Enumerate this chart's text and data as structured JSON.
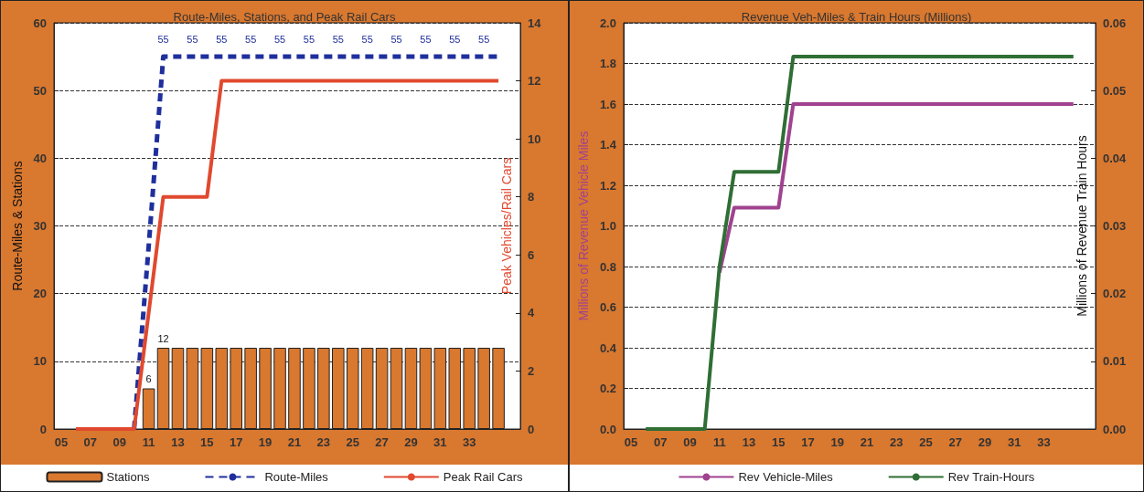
{
  "chart_data": [
    {
      "type": "bar",
      "title": "Route-Miles, Stations, and Peak Rail Cars",
      "ylabel": "Route-Miles & Stations",
      "y2label": "Peak Vehicles/Rail Cars",
      "categories": [
        "05",
        null,
        "07",
        null,
        "09",
        null,
        "11",
        null,
        "13",
        null,
        "15",
        null,
        "17",
        null,
        "19",
        null,
        "21",
        null,
        "23",
        null,
        "25",
        null,
        "27",
        null,
        "29",
        null,
        "31",
        null,
        "33",
        null,
        null,
        null
      ],
      "series": [
        {
          "name": "Stations",
          "color": "#d9782f",
          "values": [
            null,
            null,
            null,
            null,
            null,
            null,
            6,
            12,
            12,
            12,
            12,
            12,
            12,
            12,
            12,
            12,
            12,
            12,
            12,
            12,
            12,
            12,
            12,
            12,
            12,
            12,
            12,
            12,
            12,
            12,
            12,
            null
          ],
          "value_labels": [
            null,
            null,
            null,
            null,
            null,
            null,
            "6",
            "12",
            null,
            null,
            null,
            null,
            null,
            null,
            null,
            null,
            null,
            null,
            null,
            null,
            null,
            null,
            null,
            null,
            null,
            null,
            null,
            null,
            null,
            null,
            null,
            null
          ]
        },
        {
          "name": "Route-Miles",
          "type": "line",
          "line_style": "dashed",
          "color": "#1f2f9c",
          "values": [
            null,
            null,
            null,
            null,
            null,
            0,
            27,
            55,
            55,
            55,
            55,
            55,
            55,
            55,
            55,
            55,
            55,
            55,
            55,
            55,
            55,
            55,
            55,
            55,
            55,
            55,
            55,
            55,
            55,
            55,
            55,
            null
          ],
          "value_labels": [
            null,
            null,
            null,
            null,
            null,
            null,
            null,
            "55",
            null,
            "55",
            null,
            "55",
            null,
            "55",
            null,
            "55",
            null,
            "55",
            null,
            "55",
            null,
            "55",
            null,
            "55",
            null,
            "55",
            null,
            "55",
            null,
            "55",
            null,
            null
          ]
        },
        {
          "name": "Peak Rail Cars",
          "type": "line",
          "axis": "y2",
          "color": "#e0492f",
          "values": [
            null,
            0,
            0,
            0,
            0,
            0,
            4,
            8,
            8,
            8,
            8,
            12,
            12,
            12,
            12,
            12,
            12,
            12,
            12,
            12,
            12,
            12,
            12,
            12,
            12,
            12,
            12,
            12,
            12,
            12,
            12,
            null
          ]
        }
      ],
      "ylim": [
        0,
        60
      ],
      "yticks": [
        0,
        10,
        20,
        30,
        40,
        50,
        60
      ],
      "y2lim": [
        0,
        14
      ],
      "y2ticks": [
        0,
        2,
        4,
        6,
        8,
        10,
        12,
        14
      ],
      "grid": "y",
      "legend": "bottom",
      "marker": "none"
    },
    {
      "type": "line",
      "title": "Revenue Veh-Miles & Train Hours (Millions)",
      "ylabel": "Millions of Revenue Vehicle Miles",
      "y2label": "Millions of Revenue Train Hours",
      "categories": [
        "05",
        null,
        "07",
        null,
        "09",
        null,
        "11",
        null,
        "13",
        null,
        "15",
        null,
        "17",
        null,
        "19",
        null,
        "21",
        null,
        "23",
        null,
        "25",
        null,
        "27",
        null,
        "29",
        null,
        "31",
        null,
        "33",
        null,
        null,
        null
      ],
      "series": [
        {
          "name": "Rev Vehicle-Miles",
          "color": "#a0428f",
          "values": [
            null,
            null,
            null,
            null,
            null,
            null,
            0.77,
            1.09,
            1.09,
            1.09,
            1.09,
            1.6,
            1.6,
            1.6,
            1.6,
            1.6,
            1.6,
            1.6,
            1.6,
            1.6,
            1.6,
            1.6,
            1.6,
            1.6,
            1.6,
            1.6,
            1.6,
            1.6,
            1.6,
            1.6,
            1.6,
            null
          ]
        },
        {
          "name": "Rev Train-Hours",
          "axis": "y2",
          "color": "#2f6e35",
          "values": [
            null,
            0,
            0,
            0,
            0,
            0,
            0.024,
            0.038,
            0.038,
            0.038,
            0.038,
            0.055,
            0.055,
            0.055,
            0.055,
            0.055,
            0.055,
            0.055,
            0.055,
            0.055,
            0.055,
            0.055,
            0.055,
            0.055,
            0.055,
            0.055,
            0.055,
            0.055,
            0.055,
            0.055,
            0.055,
            null
          ]
        }
      ],
      "ylim": [
        0,
        2
      ],
      "yticks": [
        {
          "value": 0,
          "label": "0.0"
        },
        {
          "value": 0.2,
          "label": "0.2"
        },
        {
          "value": 0.4,
          "label": "0.4"
        },
        {
          "value": 0.6,
          "label": "0.6"
        },
        {
          "value": 0.8,
          "label": "0.8"
        },
        {
          "value": 1,
          "label": "1.0"
        },
        {
          "value": 1.2,
          "label": "1.2"
        },
        {
          "value": 1.4,
          "label": "1.4"
        },
        {
          "value": 1.6,
          "label": "1.6"
        },
        {
          "value": 1.8,
          "label": "1.8"
        },
        {
          "value": 2,
          "label": "2.0"
        }
      ],
      "y2lim": [
        0,
        0.06
      ],
      "y2ticks": [
        {
          "value": 0,
          "label": "0.00"
        },
        {
          "value": 0.01,
          "label": "0.01"
        },
        {
          "value": 0.02,
          "label": "0.02"
        },
        {
          "value": 0.03,
          "label": "0.03"
        },
        {
          "value": 0.04,
          "label": "0.04"
        },
        {
          "value": 0.05,
          "label": "0.05"
        },
        {
          "value": 0.06,
          "label": "0.06"
        }
      ],
      "grid": "y",
      "legend": "bottom",
      "marker": "none"
    }
  ]
}
